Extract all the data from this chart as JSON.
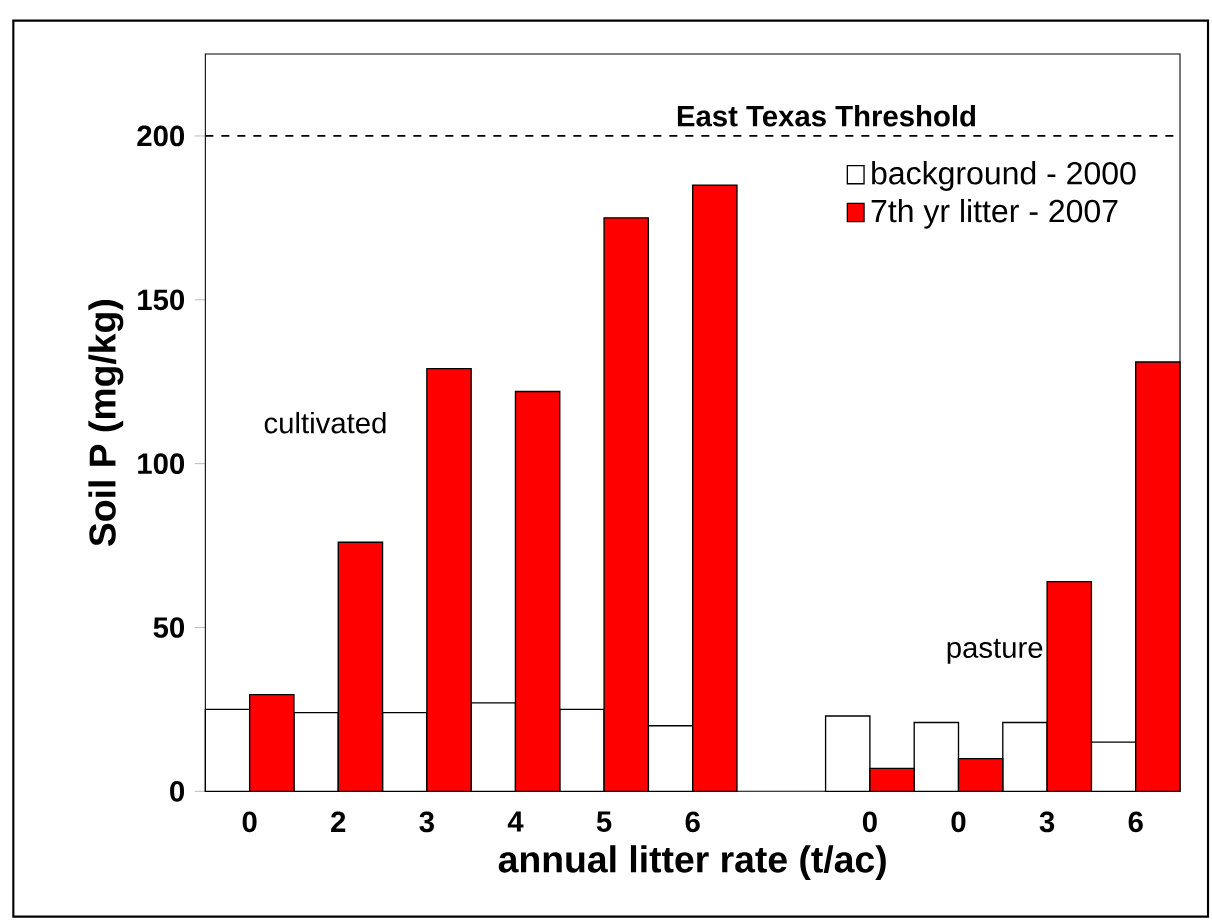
{
  "chart_data": {
    "type": "bar",
    "xlabel": "annual litter rate (t/ac)",
    "ylabel": "Soil P (mg/kg)",
    "categories": [
      "0",
      "2",
      "3",
      "4",
      "5",
      "6",
      null,
      "0",
      "0",
      "3",
      "6"
    ],
    "series": [
      {
        "name": "background - 2000",
        "color": "#ffffff",
        "values": [
          25,
          24,
          24,
          27,
          25,
          20,
          null,
          23,
          21,
          21,
          15
        ]
      },
      {
        "name": "7th yr litter - 2007",
        "color": "#ff0000",
        "values": [
          29.5,
          76,
          129,
          122,
          175,
          185,
          null,
          7,
          10,
          64,
          131
        ]
      }
    ],
    "ylim": [
      0,
      225
    ],
    "yticks": [
      0,
      50,
      100,
      150,
      200
    ],
    "ref_lines": [
      {
        "axis": "y",
        "value": 200,
        "label": "East Texas Threshold",
        "line_style": "dashed"
      }
    ],
    "annotations": [
      "cultivated",
      "pasture"
    ],
    "legend": "top right",
    "grid": false
  }
}
